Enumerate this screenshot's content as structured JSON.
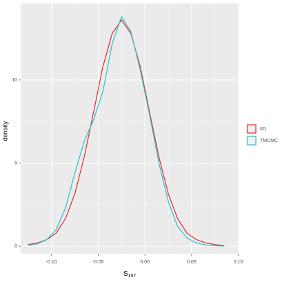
{
  "chart_data": {
    "type": "line",
    "xlabel": "S",
    "xlabel_subscript": "157",
    "ylabel": "density",
    "x": [
      -0.125,
      -0.115,
      -0.105,
      -0.095,
      -0.085,
      -0.075,
      -0.065,
      -0.055,
      -0.045,
      -0.035,
      -0.025,
      -0.015,
      -0.005,
      0.005,
      0.015,
      0.025,
      0.035,
      0.045,
      0.055,
      0.065,
      0.075,
      0.085
    ],
    "series": [
      {
        "name": "IID",
        "color": "#e8262a",
        "values": [
          0.1,
          0.2,
          0.4,
          0.79,
          1.66,
          3.16,
          5.36,
          8.05,
          10.8,
          12.8,
          13.6,
          12.8,
          10.8,
          8.05,
          5.36,
          3.16,
          1.66,
          0.79,
          0.4,
          0.2,
          0.1,
          0.04
        ]
      },
      {
        "name": "TMCMC",
        "color": "#1fc3cf",
        "values": [
          0.05,
          0.15,
          0.4,
          1.0,
          2.3,
          4.4,
          6.3,
          7.6,
          9.3,
          12.2,
          13.8,
          12.9,
          10.6,
          7.9,
          5.0,
          2.7,
          1.2,
          0.5,
          0.2,
          0.08,
          0.03,
          0.01
        ]
      }
    ],
    "xlim": [
      -0.133,
      0.101
    ],
    "ylim": [
      -0.45,
      14.6
    ],
    "xticks": [
      {
        "value": -0.1,
        "label": "-0.10"
      },
      {
        "value": -0.05,
        "label": "-0.05"
      },
      {
        "value": 0,
        "label": "0.00"
      },
      {
        "value": 0.05,
        "label": "0.05"
      },
      {
        "value": 0.1,
        "label": "0.10"
      }
    ],
    "yticks": [
      0,
      5,
      10
    ],
    "grid": true,
    "legend": "right"
  }
}
